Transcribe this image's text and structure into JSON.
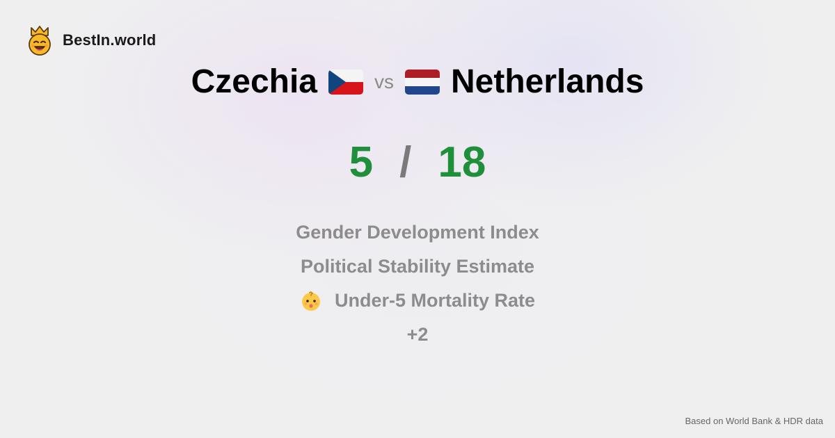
{
  "brand": {
    "name": "BestIn.world",
    "logo_icon": "crowned-smiley-icon"
  },
  "comparison": {
    "left_country": "Czechia",
    "left_flag_icon": "czechia-flag-icon",
    "vs_label": "vs",
    "right_country": "Netherlands",
    "right_flag_icon": "netherlands-flag-icon"
  },
  "score": {
    "left": "5",
    "separator": "/",
    "right": "18",
    "color": "#1f8f3c"
  },
  "metrics": {
    "items": [
      {
        "label": "Gender Development Index",
        "icon": ""
      },
      {
        "label": "Political Stability Estimate",
        "icon": ""
      },
      {
        "label": "Under-5 Mortality Rate",
        "icon": "baby-face-icon"
      }
    ],
    "more_label": "+2"
  },
  "footer": {
    "source_note": "Based on World Bank & HDR data"
  }
}
